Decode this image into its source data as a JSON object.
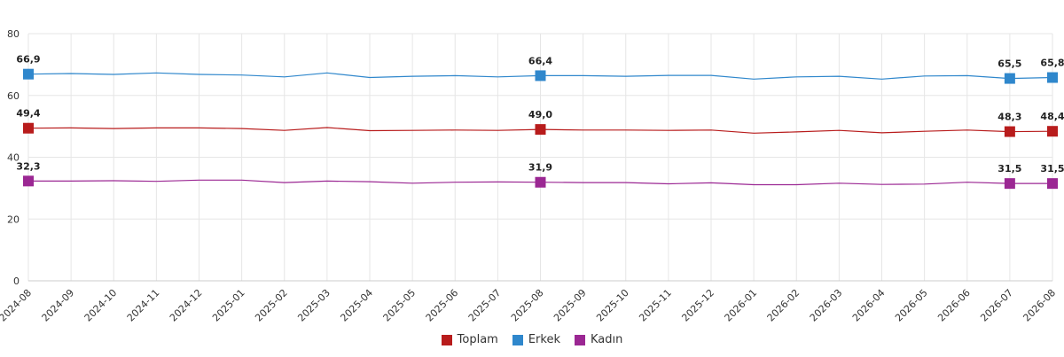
{
  "chart_data": {
    "type": "line",
    "title": "",
    "xlabel": "",
    "ylabel": "",
    "ylim": [
      0,
      80
    ],
    "yticks": [
      "0",
      "20",
      "40",
      "60",
      "80"
    ],
    "grid": true,
    "legend_position": "bottom-center",
    "categories": [
      "2024-08",
      "2024-09",
      "2024-10",
      "2024-11",
      "2024-12",
      "2025-01",
      "2025-02",
      "2025-03",
      "2025-04",
      "2025-05",
      "2025-06",
      "2025-07",
      "2025-08",
      "2025-09",
      "2025-10",
      "2025-11",
      "2025-12",
      "2026-01",
      "2026-02",
      "2026-03",
      "2026-04",
      "2026-05",
      "2026-06",
      "2026-07",
      "2026-08"
    ],
    "series": [
      {
        "name": "Toplam",
        "color": "#b81c1c",
        "values": [
          49.4,
          49.5,
          49.3,
          49.5,
          49.5,
          49.3,
          48.7,
          49.6,
          48.6,
          48.7,
          48.8,
          48.7,
          49.0,
          48.8,
          48.8,
          48.7,
          48.8,
          47.8,
          48.2,
          48.7,
          47.9,
          48.4,
          48.8,
          48.3,
          48.4
        ],
        "labels": [
          {
            "index": 0,
            "text": "49,4"
          },
          {
            "index": 12,
            "text": "49,0"
          },
          {
            "index": 23,
            "text": "48,3"
          },
          {
            "index": 24,
            "text": "48,4"
          }
        ]
      },
      {
        "name": "Erkek",
        "color": "#2f87cc",
        "values": [
          66.9,
          67.1,
          66.8,
          67.3,
          66.8,
          66.6,
          66.0,
          67.3,
          65.8,
          66.2,
          66.4,
          66.0,
          66.4,
          66.4,
          66.2,
          66.5,
          66.5,
          65.3,
          66.0,
          66.2,
          65.3,
          66.3,
          66.4,
          65.5,
          65.8
        ],
        "labels": [
          {
            "index": 0,
            "text": "66,9"
          },
          {
            "index": 12,
            "text": "66,4"
          },
          {
            "index": 23,
            "text": "65,5"
          },
          {
            "index": 24,
            "text": "65,8"
          }
        ]
      },
      {
        "name": "Kadın",
        "color": "#9b2793",
        "values": [
          32.3,
          32.3,
          32.4,
          32.2,
          32.6,
          32.6,
          31.8,
          32.3,
          32.1,
          31.6,
          31.9,
          32.0,
          31.9,
          31.8,
          31.8,
          31.4,
          31.7,
          31.1,
          31.1,
          31.6,
          31.2,
          31.3,
          31.9,
          31.5,
          31.5
        ],
        "labels": [
          {
            "index": 0,
            "text": "32,3"
          },
          {
            "index": 12,
            "text": "31,9"
          },
          {
            "index": 23,
            "text": "31,5"
          },
          {
            "index": 24,
            "text": "31,5"
          }
        ]
      }
    ]
  }
}
